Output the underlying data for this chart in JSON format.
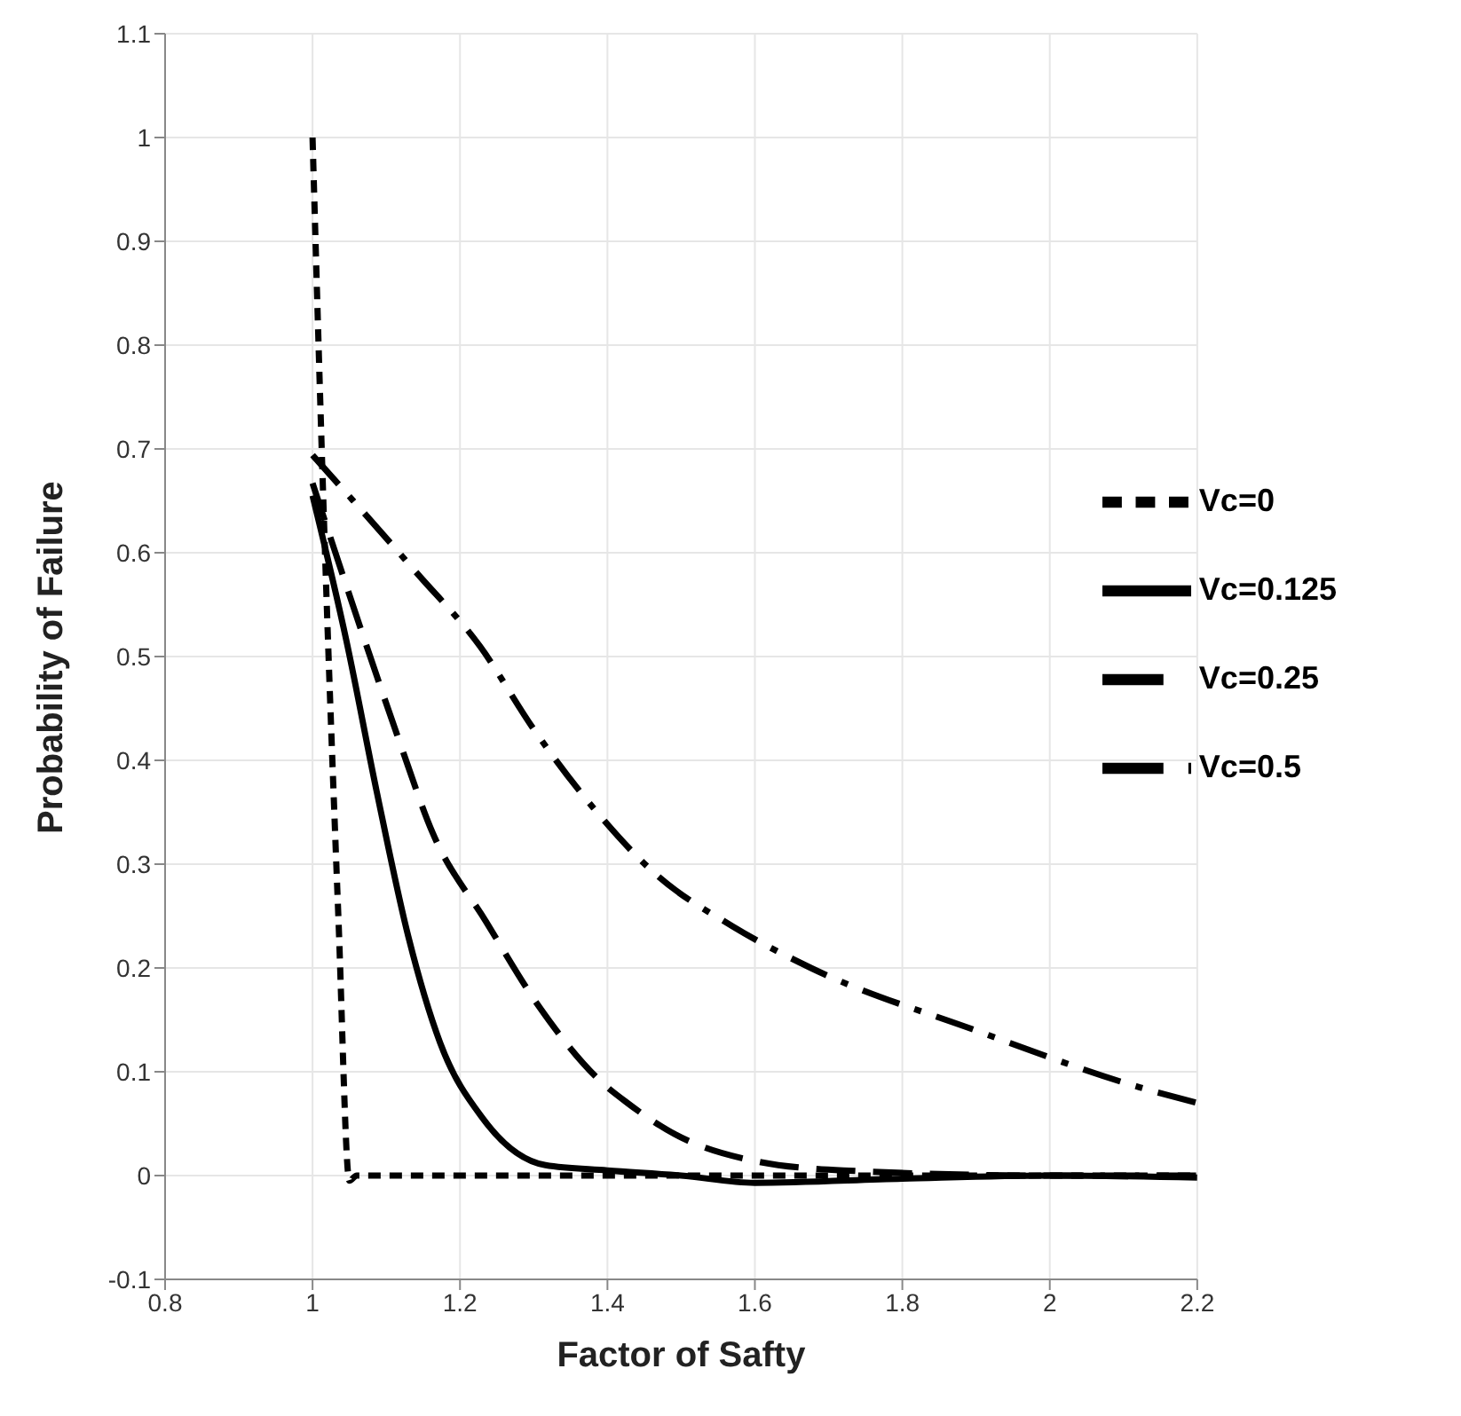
{
  "chart_data": {
    "type": "line",
    "xlabel": "Factor of Safty",
    "ylabel": "Probability of Failure",
    "xlim": [
      0.8,
      2.2
    ],
    "xticks": [
      0.8,
      1,
      1.2,
      1.4,
      1.6,
      1.8,
      2,
      2.2
    ],
    "ylim": [
      -0.1,
      1.1
    ],
    "yticks": [
      -0.1,
      0,
      0.1,
      0.2,
      0.3,
      0.4,
      0.5,
      0.6,
      0.7,
      0.8,
      0.9,
      1,
      1.1
    ],
    "grid": true,
    "legend": "right",
    "marker": "none",
    "series": [
      {
        "name": "Vc=0",
        "color": "#000000",
        "line_style": "dashed",
        "x": [
          1,
          1.016,
          1.035,
          1.05,
          1.06,
          2.2
        ],
        "values": [
          1,
          0.62,
          0.25,
          -0.005,
          0,
          0
        ]
      },
      {
        "name": "Vc=0.125",
        "color": "#000000",
        "line_style": "solid",
        "x": [
          1,
          1.046,
          1.087,
          1.13,
          1.173,
          1.231,
          1.316,
          1.4,
          1.5,
          1.6,
          1.8,
          2,
          2.2
        ],
        "values": [
          0.655,
          0.515,
          0.37,
          0.23,
          0.128,
          0.055,
          0.01,
          0.005,
          0,
          -0.007,
          -0.003,
          0,
          -0.002
        ]
      },
      {
        "name": "Vc=0.25",
        "color": "#000000",
        "line_style": "longdashed",
        "x": [
          1,
          1.071,
          1.117,
          1.163,
          1.235,
          1.307,
          1.392,
          1.427,
          1.491,
          1.6,
          1.72,
          2,
          2.2
        ],
        "values": [
          0.667,
          0.515,
          0.42,
          0.33,
          0.245,
          0.163,
          0.09,
          0.07,
          0.04,
          0.014,
          0.005,
          0,
          0
        ]
      },
      {
        "name": "Vc=0.5",
        "color": "#000000",
        "line_style": "dashdot",
        "x": [
          1,
          1.054,
          1.142,
          1.227,
          1.3,
          1.38,
          1.466,
          1.57,
          1.676,
          1.899,
          2.122,
          2.2
        ],
        "values": [
          0.694,
          0.651,
          0.58,
          0.51,
          0.43,
          0.355,
          0.29,
          0.24,
          0.2,
          0.14,
          0.085,
          0.07
        ]
      }
    ]
  }
}
